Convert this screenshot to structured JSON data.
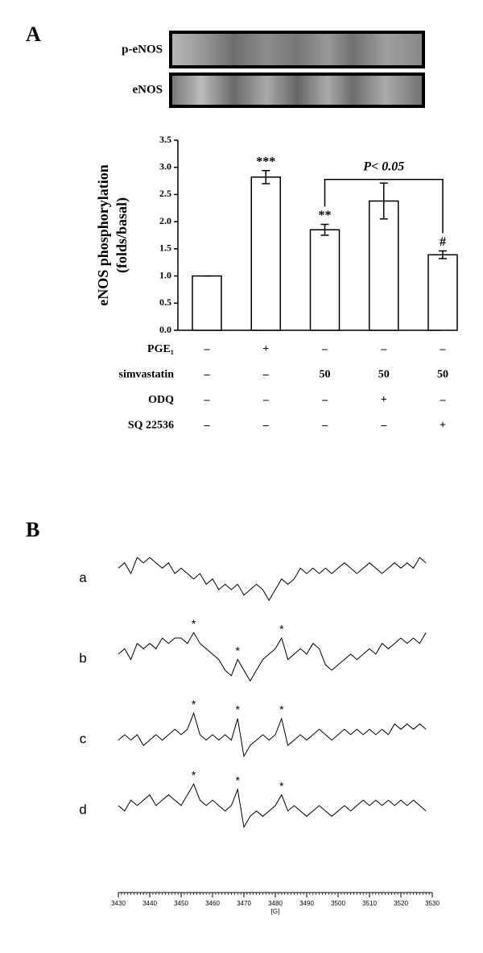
{
  "chart_data": [
    {
      "type": "bar",
      "panel_label": "A",
      "blot_labels": [
        "p-eNOS",
        "eNOS"
      ],
      "ylabel": [
        "eNOS phosphorylation",
        "(folds/basal)"
      ],
      "values": [
        1.0,
        2.82,
        1.85,
        2.38,
        1.39
      ],
      "errors": [
        0,
        0.12,
        0.1,
        0.33,
        0.07
      ],
      "value_annotations": [
        null,
        "***",
        "**",
        null,
        "#"
      ],
      "bracket": {
        "from": 2,
        "to": 4,
        "text": "P< 0.05"
      },
      "color": "#ffffff",
      "ylim": [
        0,
        3.5
      ],
      "yticks": [
        {
          "value": 0,
          "label": "0.0"
        },
        {
          "value": 0.5,
          "label": "0.5"
        },
        {
          "value": 1,
          "label": "1.0"
        },
        {
          "value": 1.5,
          "label": "1.5"
        },
        {
          "value": 2,
          "label": "2.0"
        },
        {
          "value": 2.5,
          "label": "2.5"
        },
        {
          "value": 3,
          "label": "3.0"
        },
        {
          "value": 3.5,
          "label": "3.5"
        }
      ],
      "treatments": [
        {
          "name": "PGE₁",
          "values": [
            "–",
            "+",
            "–",
            "–",
            "–"
          ]
        },
        {
          "name": "simvastatin",
          "values": [
            "–",
            "–",
            "50",
            "50",
            "50"
          ]
        },
        {
          "name": "ODQ",
          "values": [
            "–",
            "–",
            "–",
            "+",
            "–"
          ]
        },
        {
          "name": "SQ 22536",
          "values": [
            "–",
            "–",
            "–",
            "–",
            "+"
          ]
        }
      ]
    },
    {
      "type": "line",
      "panel_label": "B",
      "xlabel": "[G]",
      "x": [
        3430,
        3432,
        3434,
        3436,
        3438,
        3440,
        3442,
        3444,
        3446,
        3448,
        3450,
        3452,
        3454,
        3456,
        3458,
        3460,
        3462,
        3464,
        3466,
        3468,
        3470,
        3472,
        3474,
        3476,
        3478,
        3480,
        3482,
        3484,
        3486,
        3488,
        3490,
        3492,
        3494,
        3496,
        3498,
        3500,
        3502,
        3504,
        3506,
        3508,
        3510,
        3512,
        3514,
        3516,
        3518,
        3520,
        3522,
        3524,
        3526,
        3528
      ],
      "xlim": [
        3430,
        3530
      ],
      "xticks": [
        3430,
        3440,
        3450,
        3460,
        3470,
        3480,
        3490,
        3500,
        3510,
        3520,
        3530
      ],
      "ylim": [
        -6,
        6
      ],
      "color": "#000000",
      "series": [
        {
          "name": "a",
          "values": [
            1,
            2,
            0,
            3,
            2,
            3,
            2,
            1,
            2,
            0,
            1,
            0,
            -1,
            0,
            -2,
            -1,
            -3,
            -2,
            -3,
            -2,
            -4,
            -3,
            -2,
            -3,
            -5,
            -3,
            -1,
            -2,
            -1,
            1,
            0,
            1,
            0,
            1,
            0,
            1,
            2,
            1,
            0,
            1,
            2,
            1,
            0,
            1,
            2,
            1,
            2,
            1,
            3,
            2
          ]
        },
        {
          "name": "b",
          "values": [
            0,
            1,
            -1,
            2,
            1,
            2,
            1,
            3,
            2,
            3,
            3,
            2,
            4,
            2,
            1,
            0,
            -1,
            -3,
            -4,
            -1,
            -3,
            -5,
            -3,
            -1,
            0,
            1,
            3,
            -1,
            0,
            1,
            0,
            2,
            1,
            -2,
            -3,
            -2,
            -1,
            0,
            -1,
            0,
            1,
            0,
            2,
            1,
            2,
            3,
            2,
            3,
            2,
            4
          ],
          "annotations": [
            {
              "x": 3454,
              "text": "*"
            },
            {
              "x": 3468,
              "text": "*"
            },
            {
              "x": 3482,
              "text": "*"
            }
          ]
        },
        {
          "name": "c",
          "values": [
            -1,
            0,
            -1,
            0,
            -2,
            -1,
            0,
            -1,
            0,
            1,
            0,
            1,
            4,
            0,
            -1,
            0,
            -1,
            0,
            -1,
            3,
            -4,
            -2,
            -1,
            0,
            -1,
            0,
            3,
            -2,
            -1,
            0,
            -1,
            0,
            1,
            0,
            -1,
            0,
            1,
            0,
            1,
            0,
            1,
            0,
            1,
            0,
            2,
            1,
            2,
            1,
            2,
            1
          ],
          "annotations": [
            {
              "x": 3454,
              "text": "*"
            },
            {
              "x": 3468,
              "text": "*"
            },
            {
              "x": 3482,
              "text": "*"
            }
          ]
        },
        {
          "name": "d",
          "values": [
            0,
            -1,
            1,
            0,
            1,
            2,
            0,
            1,
            2,
            1,
            0,
            2,
            4,
            1,
            0,
            1,
            0,
            -1,
            0,
            3,
            -4,
            -2,
            -1,
            -2,
            -1,
            0,
            2,
            -1,
            0,
            -1,
            -2,
            -1,
            0,
            -1,
            -2,
            -1,
            0,
            -1,
            0,
            1,
            0,
            1,
            0,
            1,
            0,
            1,
            0,
            1,
            0,
            -1
          ],
          "annotations": [
            {
              "x": 3454,
              "text": "*"
            },
            {
              "x": 3468,
              "text": "*"
            },
            {
              "x": 3482,
              "text": "*"
            }
          ]
        }
      ]
    }
  ]
}
